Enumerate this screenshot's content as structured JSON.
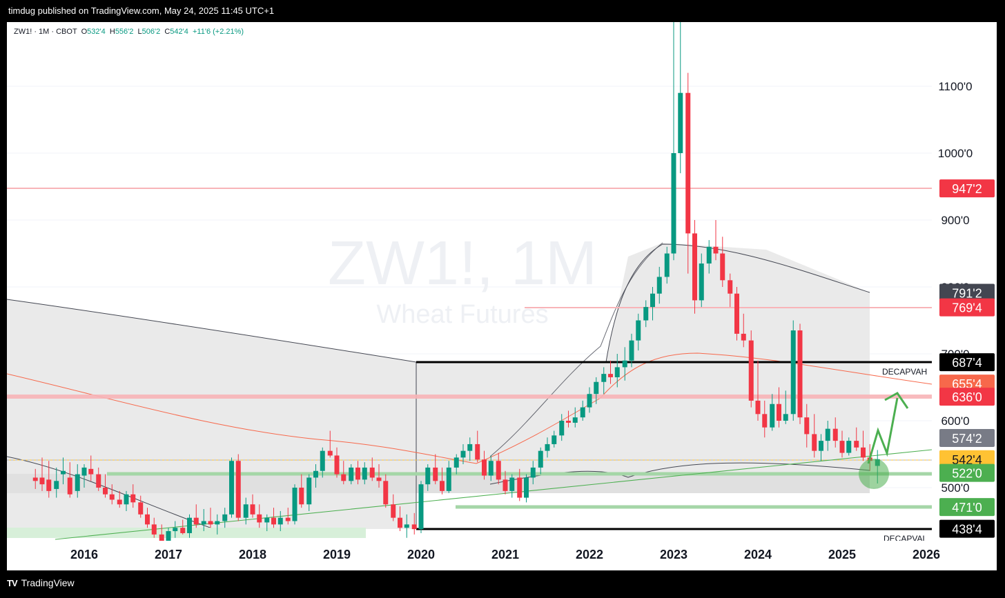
{
  "header": {
    "published": "timdug published on TradingView.com, May 24, 2025 11:45 UTC+1"
  },
  "footer": {
    "brand": "TradingView",
    "logo_text": "TV"
  },
  "colors": {
    "up": "#089981",
    "down": "#f23645",
    "grid": "#f0f3fa"
  },
  "symbol_bar": {
    "symbol": "ZW1! · 1M · CBOT",
    "open_label": "O",
    "open": "532'4",
    "high_label": "H",
    "high": "556'2",
    "low_label": "L",
    "low": "506'2",
    "close_label": "C",
    "close": "542'4",
    "change": "+11'6 (+2.21%)"
  },
  "watermark": {
    "line1": "ZW1!, 1M",
    "line2": "Wheat Futures"
  },
  "chart_data": {
    "type": "candlestick",
    "x_axis": {
      "ticks": [
        "2016",
        "2017",
        "2018",
        "2019",
        "2020",
        "2021",
        "2022",
        "2023",
        "2024",
        "2025",
        "2026"
      ]
    },
    "y_axis": {
      "ticks": [
        "500'0",
        "600'0",
        "700'0",
        "800'0",
        "900'0",
        "1000'0",
        "1100'0"
      ],
      "range": [
        448,
        1200
      ]
    },
    "price_labels": [
      {
        "text": "947'2",
        "value": 947.25,
        "color": "#f23645"
      },
      {
        "text": "791'2",
        "value": 791.25,
        "color": "#434651"
      },
      {
        "text": "769'4",
        "value": 769.5,
        "color": "#f23645"
      },
      {
        "text": "687'4",
        "value": 687.5,
        "color": "#000000"
      },
      {
        "text": "655'4",
        "value": 655.5,
        "color": "#f7684b"
      },
      {
        "text": "636'0",
        "value": 636.0,
        "color": "#f23645"
      },
      {
        "text": "574'2",
        "value": 574.25,
        "color": "#787b86"
      },
      {
        "text": "542'4",
        "value": 542.5,
        "color": "#ffc233"
      },
      {
        "text": "522'0",
        "value": 522.0,
        "color": "#4caf50"
      },
      {
        "text": "471'0",
        "value": 471.0,
        "color": "#4caf50"
      },
      {
        "text": "438'4",
        "value": 438.5,
        "color": "#000000"
      }
    ],
    "annotations": [
      "DECAPVAH",
      "DECAPVAL"
    ],
    "candles": [
      {
        "t": 2015.42,
        "o": 515,
        "h": 528,
        "l": 498,
        "c": 510
      },
      {
        "t": 2015.5,
        "o": 515,
        "h": 545,
        "l": 495,
        "c": 505
      },
      {
        "t": 2015.58,
        "o": 512,
        "h": 540,
        "l": 485,
        "c": 495
      },
      {
        "t": 2015.67,
        "o": 498,
        "h": 530,
        "l": 485,
        "c": 510
      },
      {
        "t": 2015.75,
        "o": 520,
        "h": 545,
        "l": 505,
        "c": 525
      },
      {
        "t": 2015.83,
        "o": 515,
        "h": 538,
        "l": 485,
        "c": 490
      },
      {
        "t": 2015.92,
        "o": 495,
        "h": 535,
        "l": 485,
        "c": 520
      },
      {
        "t": 2016.0,
        "o": 518,
        "h": 535,
        "l": 500,
        "c": 530
      },
      {
        "t": 2016.08,
        "o": 528,
        "h": 548,
        "l": 510,
        "c": 520
      },
      {
        "t": 2016.17,
        "o": 520,
        "h": 530,
        "l": 495,
        "c": 500
      },
      {
        "t": 2016.25,
        "o": 500,
        "h": 520,
        "l": 485,
        "c": 490
      },
      {
        "t": 2016.33,
        "o": 490,
        "h": 505,
        "l": 475,
        "c": 482
      },
      {
        "t": 2016.42,
        "o": 482,
        "h": 495,
        "l": 470,
        "c": 475
      },
      {
        "t": 2016.5,
        "o": 475,
        "h": 495,
        "l": 465,
        "c": 490
      },
      {
        "t": 2016.58,
        "o": 490,
        "h": 505,
        "l": 470,
        "c": 478
      },
      {
        "t": 2016.67,
        "o": 478,
        "h": 488,
        "l": 455,
        "c": 460
      },
      {
        "t": 2016.75,
        "o": 460,
        "h": 470,
        "l": 440,
        "c": 445
      },
      {
        "t": 2016.83,
        "o": 445,
        "h": 455,
        "l": 425,
        "c": 430
      },
      {
        "t": 2016.92,
        "o": 430,
        "h": 445,
        "l": 415,
        "c": 420
      },
      {
        "t": 2017.0,
        "o": 420,
        "h": 440,
        "l": 405,
        "c": 435
      },
      {
        "t": 2017.08,
        "o": 435,
        "h": 450,
        "l": 425,
        "c": 440
      },
      {
        "t": 2017.17,
        "o": 440,
        "h": 452,
        "l": 430,
        "c": 432
      },
      {
        "t": 2017.25,
        "o": 432,
        "h": 460,
        "l": 425,
        "c": 455
      },
      {
        "t": 2017.33,
        "o": 455,
        "h": 475,
        "l": 440,
        "c": 445
      },
      {
        "t": 2017.42,
        "o": 445,
        "h": 468,
        "l": 435,
        "c": 450
      },
      {
        "t": 2017.5,
        "o": 450,
        "h": 470,
        "l": 440,
        "c": 445
      },
      {
        "t": 2017.58,
        "o": 445,
        "h": 460,
        "l": 430,
        "c": 450
      },
      {
        "t": 2017.67,
        "o": 450,
        "h": 470,
        "l": 440,
        "c": 460
      },
      {
        "t": 2017.75,
        "o": 460,
        "h": 545,
        "l": 455,
        "c": 540
      },
      {
        "t": 2017.83,
        "o": 540,
        "h": 550,
        "l": 450,
        "c": 455
      },
      {
        "t": 2017.92,
        "o": 455,
        "h": 485,
        "l": 445,
        "c": 475
      },
      {
        "t": 2018.0,
        "o": 475,
        "h": 490,
        "l": 455,
        "c": 460
      },
      {
        "t": 2018.08,
        "o": 460,
        "h": 475,
        "l": 440,
        "c": 448
      },
      {
        "t": 2018.17,
        "o": 448,
        "h": 460,
        "l": 435,
        "c": 455
      },
      {
        "t": 2018.25,
        "o": 455,
        "h": 470,
        "l": 440,
        "c": 445
      },
      {
        "t": 2018.33,
        "o": 445,
        "h": 465,
        "l": 435,
        "c": 455
      },
      {
        "t": 2018.42,
        "o": 455,
        "h": 470,
        "l": 445,
        "c": 450
      },
      {
        "t": 2018.5,
        "o": 450,
        "h": 505,
        "l": 445,
        "c": 500
      },
      {
        "t": 2018.58,
        "o": 500,
        "h": 520,
        "l": 470,
        "c": 475
      },
      {
        "t": 2018.67,
        "o": 475,
        "h": 520,
        "l": 465,
        "c": 515
      },
      {
        "t": 2018.75,
        "o": 515,
        "h": 535,
        "l": 500,
        "c": 525
      },
      {
        "t": 2018.83,
        "o": 525,
        "h": 560,
        "l": 515,
        "c": 555
      },
      {
        "t": 2018.92,
        "o": 555,
        "h": 585,
        "l": 545,
        "c": 548
      },
      {
        "t": 2019.0,
        "o": 548,
        "h": 560,
        "l": 515,
        "c": 520
      },
      {
        "t": 2019.08,
        "o": 520,
        "h": 540,
        "l": 505,
        "c": 510
      },
      {
        "t": 2019.17,
        "o": 510,
        "h": 535,
        "l": 505,
        "c": 530
      },
      {
        "t": 2019.25,
        "o": 530,
        "h": 540,
        "l": 505,
        "c": 512
      },
      {
        "t": 2019.33,
        "o": 512,
        "h": 538,
        "l": 505,
        "c": 530
      },
      {
        "t": 2019.42,
        "o": 530,
        "h": 545,
        "l": 510,
        "c": 515
      },
      {
        "t": 2019.5,
        "o": 515,
        "h": 535,
        "l": 500,
        "c": 510
      },
      {
        "t": 2019.58,
        "o": 510,
        "h": 520,
        "l": 470,
        "c": 475
      },
      {
        "t": 2019.67,
        "o": 475,
        "h": 490,
        "l": 450,
        "c": 455
      },
      {
        "t": 2019.75,
        "o": 455,
        "h": 472,
        "l": 435,
        "c": 440
      },
      {
        "t": 2019.83,
        "o": 440,
        "h": 460,
        "l": 425,
        "c": 445
      },
      {
        "t": 2019.92,
        "o": 445,
        "h": 462,
        "l": 430,
        "c": 438
      },
      {
        "t": 2020.0,
        "o": 438,
        "h": 510,
        "l": 432,
        "c": 505
      },
      {
        "t": 2020.08,
        "o": 505,
        "h": 535,
        "l": 495,
        "c": 530
      },
      {
        "t": 2020.17,
        "o": 530,
        "h": 550,
        "l": 505,
        "c": 510
      },
      {
        "t": 2020.25,
        "o": 510,
        "h": 530,
        "l": 490,
        "c": 495
      },
      {
        "t": 2020.33,
        "o": 495,
        "h": 540,
        "l": 492,
        "c": 530
      },
      {
        "t": 2020.42,
        "o": 530,
        "h": 550,
        "l": 520,
        "c": 545
      },
      {
        "t": 2020.5,
        "o": 545,
        "h": 565,
        "l": 535,
        "c": 555
      },
      {
        "t": 2020.58,
        "o": 555,
        "h": 575,
        "l": 540,
        "c": 565
      },
      {
        "t": 2020.67,
        "o": 565,
        "h": 585,
        "l": 538,
        "c": 542
      },
      {
        "t": 2020.75,
        "o": 542,
        "h": 555,
        "l": 512,
        "c": 518
      },
      {
        "t": 2020.83,
        "o": 518,
        "h": 548,
        "l": 510,
        "c": 540
      },
      {
        "t": 2020.92,
        "o": 540,
        "h": 552,
        "l": 505,
        "c": 512
      },
      {
        "t": 2021.0,
        "o": 512,
        "h": 525,
        "l": 490,
        "c": 495
      },
      {
        "t": 2021.08,
        "o": 495,
        "h": 520,
        "l": 485,
        "c": 515
      },
      {
        "t": 2021.17,
        "o": 515,
        "h": 528,
        "l": 480,
        "c": 485
      },
      {
        "t": 2021.25,
        "o": 485,
        "h": 520,
        "l": 478,
        "c": 515
      },
      {
        "t": 2021.33,
        "o": 515,
        "h": 540,
        "l": 505,
        "c": 530
      },
      {
        "t": 2021.42,
        "o": 530,
        "h": 560,
        "l": 520,
        "c": 555
      },
      {
        "t": 2021.5,
        "o": 555,
        "h": 575,
        "l": 545,
        "c": 565
      },
      {
        "t": 2021.58,
        "o": 565,
        "h": 585,
        "l": 560,
        "c": 578
      },
      {
        "t": 2021.67,
        "o": 578,
        "h": 610,
        "l": 570,
        "c": 600
      },
      {
        "t": 2021.75,
        "o": 600,
        "h": 615,
        "l": 590,
        "c": 597
      },
      {
        "t": 2021.83,
        "o": 597,
        "h": 620,
        "l": 590,
        "c": 605
      },
      {
        "t": 2021.92,
        "o": 605,
        "h": 630,
        "l": 600,
        "c": 620
      },
      {
        "t": 2022.0,
        "o": 620,
        "h": 650,
        "l": 612,
        "c": 640
      },
      {
        "t": 2022.08,
        "o": 640,
        "h": 665,
        "l": 625,
        "c": 658
      },
      {
        "t": 2022.17,
        "o": 658,
        "h": 680,
        "l": 640,
        "c": 670
      },
      {
        "t": 2022.25,
        "o": 670,
        "h": 690,
        "l": 655,
        "c": 665
      },
      {
        "t": 2022.33,
        "o": 665,
        "h": 700,
        "l": 650,
        "c": 680
      },
      {
        "t": 2022.42,
        "o": 680,
        "h": 710,
        "l": 660,
        "c": 690
      },
      {
        "t": 2022.5,
        "o": 690,
        "h": 730,
        "l": 680,
        "c": 720
      },
      {
        "t": 2022.58,
        "o": 720,
        "h": 760,
        "l": 705,
        "c": 750
      },
      {
        "t": 2022.67,
        "o": 750,
        "h": 780,
        "l": 740,
        "c": 770
      },
      {
        "t": 2022.75,
        "o": 770,
        "h": 800,
        "l": 750,
        "c": 790
      },
      {
        "t": 2022.83,
        "o": 790,
        "h": 830,
        "l": 775,
        "c": 815
      },
      {
        "t": 2022.92,
        "o": 815,
        "h": 860,
        "l": 805,
        "c": 850
      }
    ]
  }
}
